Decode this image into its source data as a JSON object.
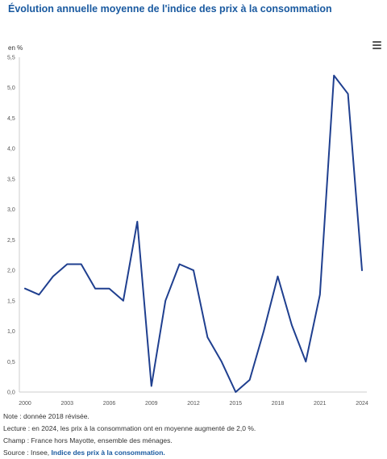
{
  "header": {
    "title": "Évolution annuelle moyenne de l'indice des prix à la consommation",
    "menu_icon": "hamburger-menu-icon"
  },
  "chart_data": {
    "type": "line",
    "title": "Évolution annuelle moyenne de l'indice des prix à la consommation",
    "ylabel": "en %",
    "xlabel": "",
    "x": [
      2000,
      2001,
      2002,
      2003,
      2004,
      2005,
      2006,
      2007,
      2008,
      2009,
      2010,
      2011,
      2012,
      2013,
      2014,
      2015,
      2016,
      2017,
      2018,
      2019,
      2020,
      2021,
      2022,
      2023,
      2024
    ],
    "series": [
      {
        "values": [
          1.7,
          1.6,
          1.9,
          2.1,
          2.1,
          1.7,
          1.7,
          1.5,
          2.8,
          0.1,
          1.5,
          2.1,
          2.0,
          0.9,
          0.5,
          0.0,
          0.2,
          1.0,
          1.9,
          1.1,
          0.5,
          1.6,
          5.2,
          4.9,
          2.0
        ]
      }
    ],
    "xticks": [
      "2000",
      "2003",
      "2006",
      "2009",
      "2012",
      "2015",
      "2018",
      "2021",
      "2024"
    ],
    "yticks": [
      "0,0",
      "0,5",
      "1,0",
      "1,5",
      "2,0",
      "2,5",
      "3,0",
      "3,5",
      "4,0",
      "4,5",
      "5,0",
      "5,5"
    ],
    "ylim": [
      0,
      5.5
    ],
    "xlim": [
      2000,
      2024
    ],
    "grid": false,
    "line_color": "#1f3f8f"
  },
  "notes": {
    "note": "Note : donnée 2018 révisée.",
    "lecture": "Lecture : en 2024, les prix à la consommation ont en moyenne augmenté de 2,0 %.",
    "champ": "Champ : France hors Mayotte, ensemble des ménages.",
    "source_prefix": "Source : Insee, ",
    "source_link": "Indice des prix à la consommation."
  }
}
